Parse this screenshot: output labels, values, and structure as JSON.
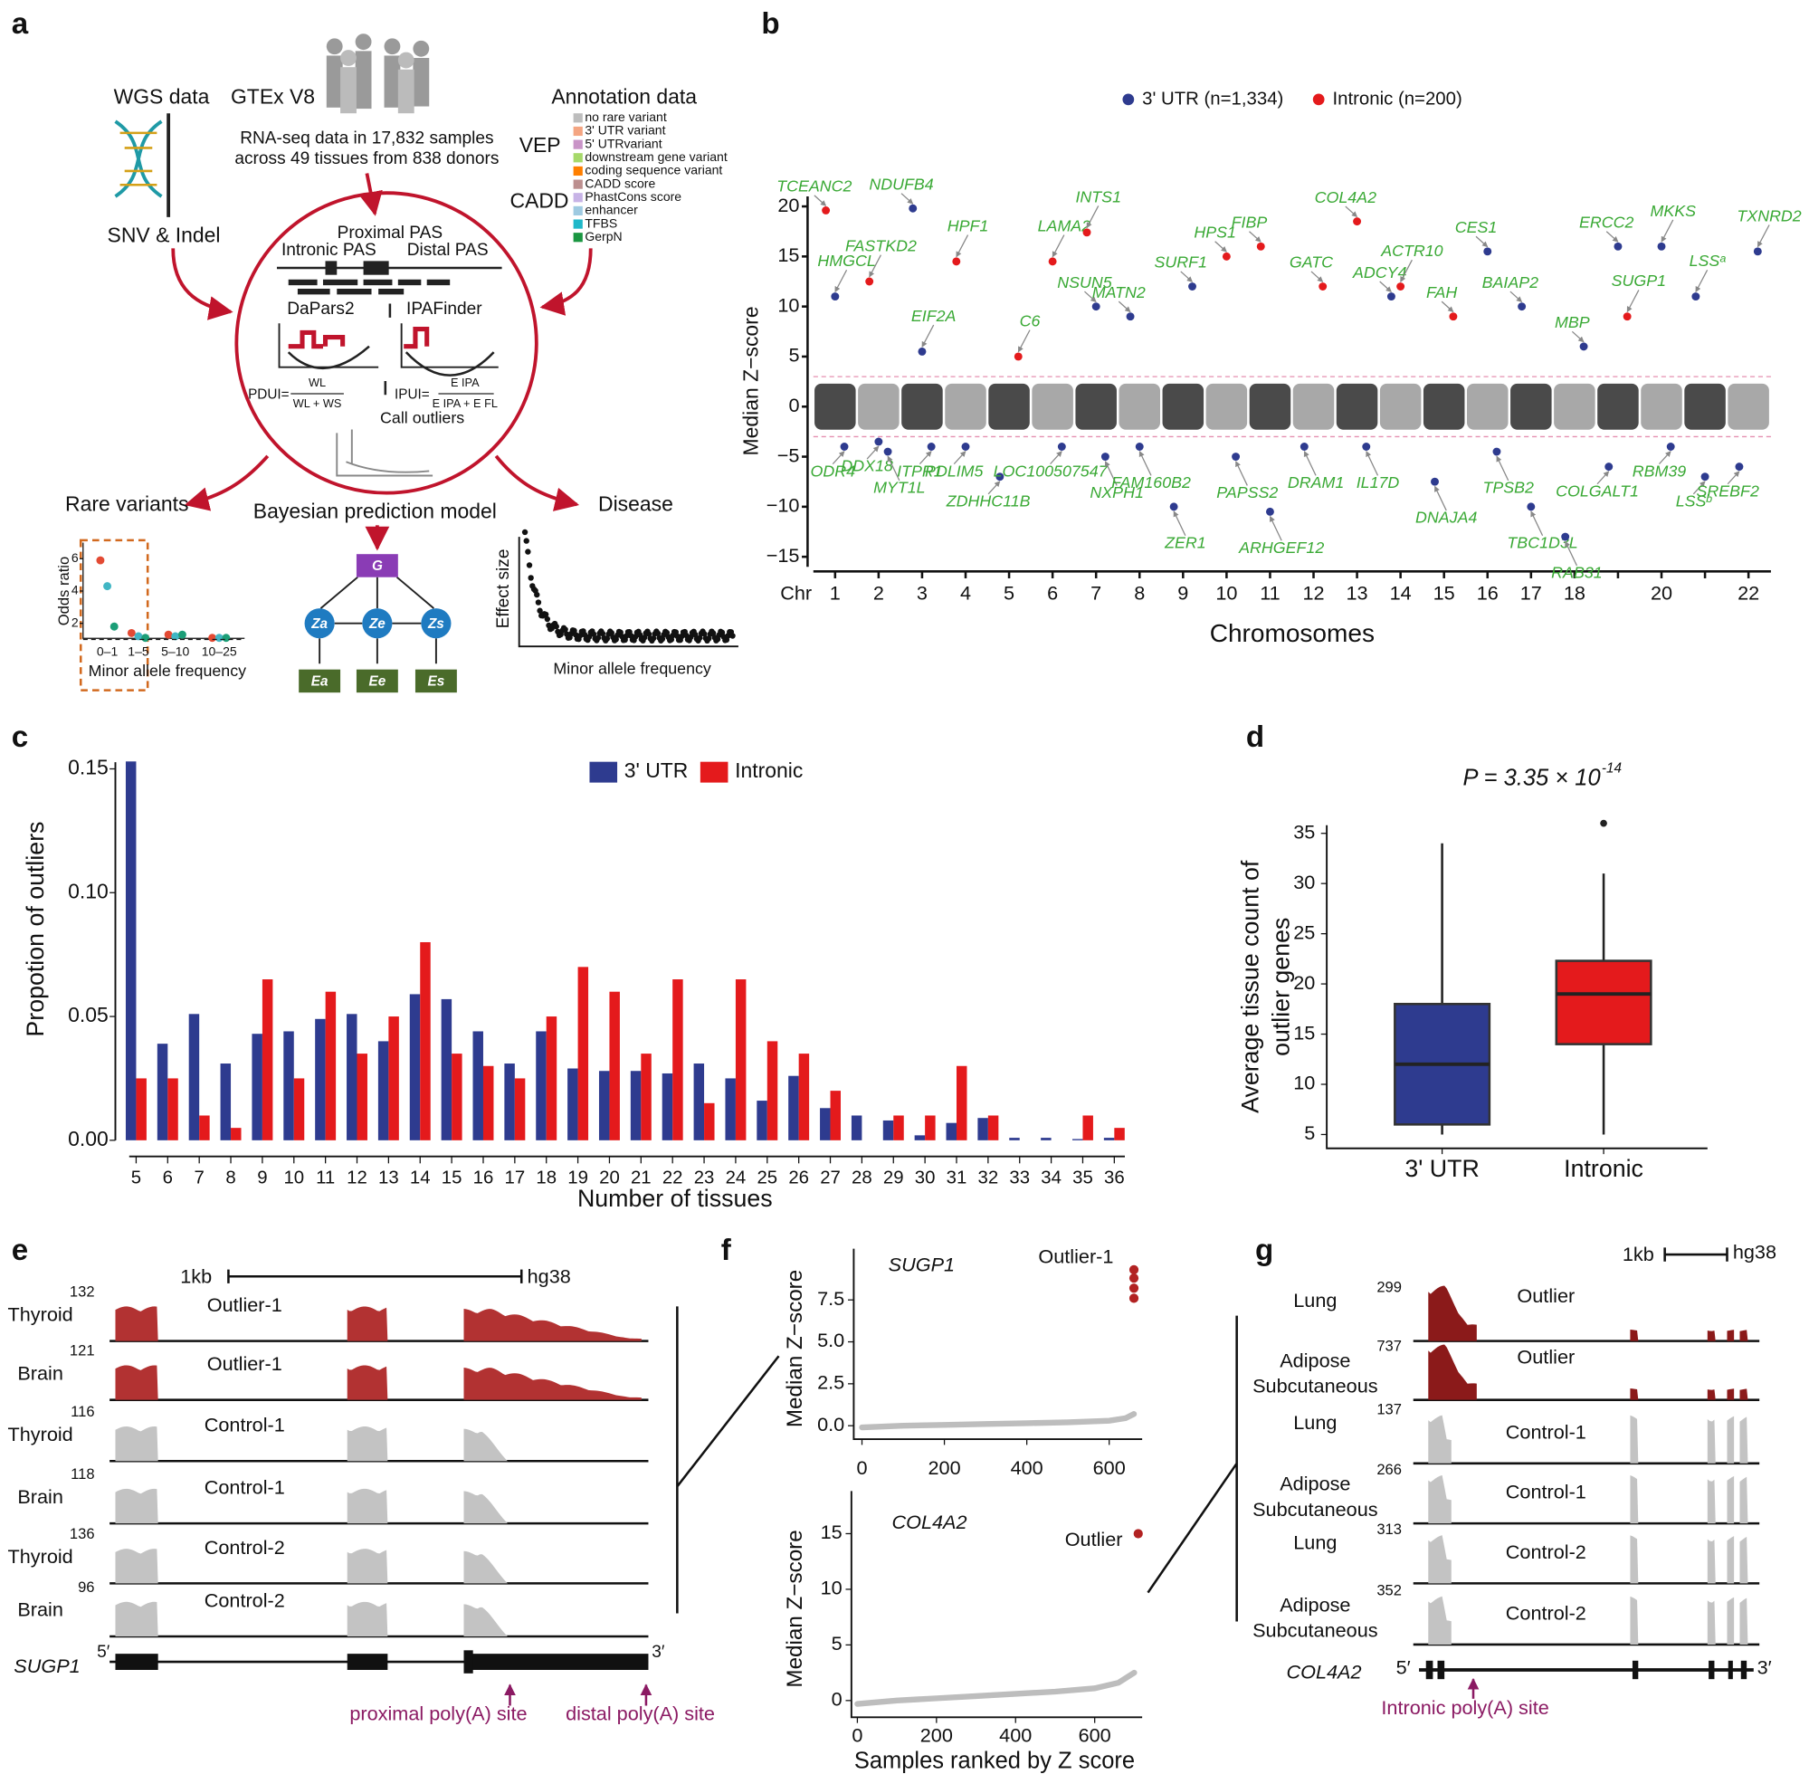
{
  "panel_labels": [
    "a",
    "b",
    "c",
    "d",
    "e",
    "f",
    "g"
  ],
  "overview": {
    "wgs": "WGS data",
    "snv": "SNV & Indel",
    "gtex": "GTEx V8",
    "rnaseq": [
      "RNA-seq data in 17,832 samples",
      "across 49 tissues from 838 donors"
    ],
    "annotation": "Annotation data",
    "vep": "VEP",
    "cadd": "CADD",
    "annotation_items": [
      {
        "label": "no rare variant",
        "color": "#bdbdbd"
      },
      {
        "label": "3' UTR variant",
        "color": "#f4a582"
      },
      {
        "label": "5' UTRvariant",
        "color": "#c994c7"
      },
      {
        "label": "downstream gene variant",
        "color": "#a6d96a"
      },
      {
        "label": "coding sequence variant",
        "color": "#ff7f00"
      },
      {
        "label": "CADD score",
        "color": "#bc8f8f"
      },
      {
        "label": "PhastCons score",
        "color": "#c7b3e6"
      },
      {
        "label": "enhancer",
        "color": "#9ecae1"
      },
      {
        "label": "TFBS",
        "color": "#1fb8c9"
      },
      {
        "label": "GerpN",
        "color": "#1a9641"
      }
    ],
    "pas": [
      "Proximal PAS",
      "Intronic PAS",
      "Distal PAS"
    ],
    "tools": [
      "DaPars2",
      "IPAFinder"
    ],
    "pdui": [
      "PDUI=",
      "WL",
      "WL + WS"
    ],
    "ipui": [
      "IPUI=",
      "E IPA",
      "E IPA + E FL"
    ],
    "call": "Call outliers",
    "rare": "Rare variants",
    "bayes": "Bayesian prediction model",
    "disease": "Disease",
    "odds": {
      "ylabel": "Odds ratio",
      "xlabel": "Minor allele frequency",
      "bins": [
        "0–1",
        "1–5",
        "5–10",
        "10–25"
      ],
      "yticks": [
        2,
        4,
        6
      ],
      "ylim": [
        0,
        7
      ],
      "series": [
        {
          "color": "#e34a33",
          "values": [
            5.9,
            1.4,
            1.3,
            1.1
          ]
        },
        {
          "color": "#41b6c4",
          "values": [
            4.3,
            1.2,
            1.2,
            1.1
          ]
        },
        {
          "color": "#1b9e77",
          "values": [
            1.8,
            1.1,
            1.3,
            1.1
          ]
        }
      ]
    },
    "nodes": [
      "G",
      "Za",
      "Ze",
      "Zs",
      "Ea",
      "Ee",
      "Es"
    ],
    "effect": {
      "ylabel": "Effect size",
      "xlabel": "Minor allele frequency"
    }
  },
  "chart_data": [
    {
      "type": "scatter",
      "ylabel": "Median Z−score",
      "xlabel": "Chromosomes",
      "xaxis_prefix": "Chr",
      "categories": [
        "1",
        "2",
        "3",
        "4",
        "5",
        "6",
        "7",
        "8",
        "9",
        "10",
        "11",
        "12",
        "13",
        "14",
        "15",
        "16",
        "17",
        "18",
        null,
        "20",
        null,
        "22"
      ],
      "ylim": [
        -16,
        21
      ],
      "yticks": [
        {
          "value": -15,
          "label": "−15"
        },
        {
          "value": -10,
          "label": "−10"
        },
        {
          "value": -5,
          "label": "−5"
        },
        0,
        5,
        10,
        15,
        20
      ],
      "thresholds": [
        3,
        -3
      ],
      "series": [
        {
          "name": "3' UTR (n=1,334)",
          "color": "#2e3b8f"
        },
        {
          "name": "Intronic (n=200)",
          "color": "#e41a1c"
        }
      ],
      "annotations": [
        {
          "label": "TCEANC2",
          "chr": 1,
          "z": 19.6,
          "series": 1
        },
        {
          "label": "HMGCL",
          "chr": 1,
          "z": 11,
          "series": 0
        },
        {
          "label": "ODR4",
          "chr": 1,
          "z": -4,
          "series": 0
        },
        {
          "label": "FASTKD2",
          "chr": 2,
          "z": 12.5,
          "series": 1
        },
        {
          "label": "DDX18",
          "chr": 2,
          "z": -3.5,
          "series": 0
        },
        {
          "label": "MYT1L",
          "chr": 2,
          "z": -4.5,
          "series": 0
        },
        {
          "label": "NDUFB4",
          "chr": 3,
          "z": 19.8,
          "series": 0
        },
        {
          "label": "EIF2A",
          "chr": 3,
          "z": 5.5,
          "series": 0
        },
        {
          "label": "ITPR1",
          "chr": 3,
          "z": -4,
          "series": 0
        },
        {
          "label": "HPF1",
          "chr": 4,
          "z": 14.5,
          "series": 1
        },
        {
          "label": "PDLIM5",
          "chr": 4,
          "z": -4,
          "series": 0
        },
        {
          "label": "C6",
          "chr": 5,
          "z": 5,
          "series": 1
        },
        {
          "label": "ZDHHC11B",
          "chr": 5,
          "z": -7,
          "series": 0
        },
        {
          "label": "LAMA2",
          "chr": 6,
          "z": 14.5,
          "series": 1
        },
        {
          "label": "LOC100507547",
          "chr": 6,
          "z": -4,
          "series": 0
        },
        {
          "label": "INTS1",
          "chr": 7,
          "z": 17.4,
          "series": 1
        },
        {
          "label": "NSUN5",
          "chr": 7,
          "z": 10,
          "series": 0
        },
        {
          "label": "NXPH1",
          "chr": 7,
          "z": -5,
          "series": 0
        },
        {
          "label": "MATN2",
          "chr": 8,
          "z": 9,
          "series": 0
        },
        {
          "label": "FAM160B2",
          "chr": 8,
          "z": -4,
          "series": 0
        },
        {
          "label": "SURF1",
          "chr": 9,
          "z": 12,
          "series": 0
        },
        {
          "label": "ZER1",
          "chr": 9,
          "z": -10,
          "series": 0
        },
        {
          "label": "HPS1",
          "chr": 10,
          "z": 15,
          "series": 1
        },
        {
          "label": "PAPSS2",
          "chr": 10,
          "z": -5,
          "series": 0
        },
        {
          "label": "FIBP",
          "chr": 11,
          "z": 16,
          "series": 1
        },
        {
          "label": "ARHGEF12",
          "chr": 11,
          "z": -10.5,
          "series": 0
        },
        {
          "label": "GATC",
          "chr": 12,
          "z": 12,
          "series": 1
        },
        {
          "label": "DRAM1",
          "chr": 12,
          "z": -4,
          "series": 0
        },
        {
          "label": "COL4A2",
          "chr": 13,
          "z": 18.5,
          "series": 1
        },
        {
          "label": "IL17D",
          "chr": 13,
          "z": -4,
          "series": 0
        },
        {
          "label": "ADCY4",
          "chr": 14,
          "z": 11,
          "series": 0
        },
        {
          "label": "ACTR10",
          "chr": 14,
          "z": 12,
          "series": 1
        },
        {
          "label": "FAH",
          "chr": 15,
          "z": 9,
          "series": 1
        },
        {
          "label": "DNAJA4",
          "chr": 15,
          "z": -7.5,
          "series": 0
        },
        {
          "label": "CES1",
          "chr": 16,
          "z": 15.5,
          "series": 0
        },
        {
          "label": "TPSB2",
          "chr": 16,
          "z": -4.5,
          "series": 0
        },
        {
          "label": "BAIAP2",
          "chr": 17,
          "z": 10,
          "series": 0
        },
        {
          "label": "TBC1D3L",
          "chr": 17,
          "z": -10,
          "series": 0
        },
        {
          "label": "MBP",
          "chr": 18,
          "z": 6,
          "series": 0
        },
        {
          "label": "RAB31",
          "chr": 18,
          "z": -13,
          "series": 0
        },
        {
          "label": "ERCC2",
          "chr": 19,
          "z": 16,
          "series": 0
        },
        {
          "label": "SUGP1",
          "chr": 19,
          "z": 9,
          "series": 1
        },
        {
          "label": "COLGALT1",
          "chr": 19,
          "z": -6,
          "series": 0
        },
        {
          "label": "MKKS",
          "chr": 20,
          "z": 16,
          "series": 0
        },
        {
          "label": "RBM39",
          "chr": 20,
          "z": -4,
          "series": 0
        },
        {
          "label": "LSSᵃ",
          "chr": 21,
          "z": 11,
          "series": 0
        },
        {
          "label": "LSSᵇ",
          "chr": 21,
          "z": -7,
          "series": 0
        },
        {
          "label": "TXNRD2",
          "chr": 22,
          "z": 15.5,
          "series": 0
        },
        {
          "label": "SREBF2",
          "chr": 22,
          "z": -6,
          "series": 0
        }
      ]
    },
    {
      "type": "bar",
      "ylabel": "Propotion of outliers",
      "xlabel": "Number of tissues",
      "categories": [
        "5",
        "6",
        "7",
        "8",
        "9",
        "10",
        "11",
        "12",
        "13",
        "14",
        "15",
        "16",
        "17",
        "18",
        "19",
        "20",
        "21",
        "22",
        "23",
        "24",
        "25",
        "26",
        "27",
        "28",
        "29",
        "30",
        "31",
        "32",
        "33",
        "34",
        "35",
        "36"
      ],
      "series": [
        {
          "name": "3' UTR",
          "color": "#2e3b8f",
          "values": [
            0.153,
            0.039,
            0.051,
            0.031,
            0.043,
            0.044,
            0.049,
            0.051,
            0.04,
            0.059,
            0.057,
            0.044,
            0.031,
            0.044,
            0.029,
            0.028,
            0.028,
            0.027,
            0.031,
            0.025,
            0.016,
            0.026,
            0.013,
            0.01,
            0.008,
            0.002,
            0.007,
            0.009,
            0.001,
            0.001,
            0.0005,
            0.001
          ]
        },
        {
          "name": "Intronic",
          "color": "#e41a1c",
          "values": [
            0.025,
            0.025,
            0.01,
            0.005,
            0.065,
            0.025,
            0.06,
            0.035,
            0.05,
            0.08,
            0.035,
            0.03,
            0.025,
            0.05,
            0.07,
            0.06,
            0.035,
            0.065,
            0.015,
            0.065,
            0.04,
            0.035,
            0.02,
            0,
            0.01,
            0.01,
            0.03,
            0.01,
            0,
            0,
            0.01,
            0.005
          ]
        }
      ],
      "ylim": [
        0,
        0.155
      ],
      "yticks": [
        {
          "value": 0,
          "label": "0.00"
        },
        {
          "value": 0.05,
          "label": "0.05"
        },
        {
          "value": 0.1,
          "label": "0.10"
        },
        {
          "value": 0.15,
          "label": "0.15"
        }
      ]
    },
    {
      "type": "box",
      "title": "P = 3.35 × 10",
      "title_exponent": "-14",
      "ylabel": [
        "Average tissue count of",
        "outlier genes"
      ],
      "boxes": [
        {
          "name": "3' UTR",
          "color": "#2e3b8f",
          "low": 5,
          "q1": 6,
          "median": 12,
          "q3": 18,
          "high": 34
        },
        {
          "name": "Intronic",
          "color": "#e41a1c",
          "low": 5,
          "q1": 14,
          "median": 19,
          "q3": 22.3,
          "high": 31,
          "outliers": [
            36
          ]
        }
      ],
      "ylim": [
        3,
        37
      ],
      "yticks": [
        5,
        10,
        15,
        20,
        25,
        30,
        35
      ]
    },
    {
      "type": "line",
      "title": "SUGP1",
      "annotation": "Outlier-1",
      "ylabel": "Median Z−score",
      "color": "#bdbdbd",
      "outlier_color": "#b22222",
      "x": [
        0,
        100,
        200,
        300,
        400,
        500,
        600,
        640,
        660
      ],
      "values": [
        -0.1,
        0.0,
        0.05,
        0.1,
        0.15,
        0.2,
        0.3,
        0.45,
        0.7
      ],
      "outliers": {
        "x": [
          660,
          660,
          660,
          660
        ],
        "values": [
          9.3,
          8.8,
          8.2,
          7.6
        ]
      },
      "xlim": [
        -20,
        680
      ],
      "ylim": [
        -0.8,
        10
      ],
      "xticks": [
        0,
        200,
        400,
        600
      ],
      "yticks": [
        {
          "value": 0,
          "label": "0.0"
        },
        {
          "value": 2.5,
          "label": "2.5"
        },
        {
          "value": 5,
          "label": "5.0"
        },
        {
          "value": 7.5,
          "label": "7.5"
        }
      ]
    },
    {
      "type": "line",
      "title": "COL4A2",
      "annotation": "Outlier",
      "ylabel": "Median Z−score",
      "xlabel": "Samples ranked by Z score",
      "color": "#bdbdbd",
      "outlier_color": "#b22222",
      "x": [
        0,
        100,
        200,
        300,
        400,
        500,
        600,
        660,
        700
      ],
      "values": [
        -0.3,
        0.0,
        0.2,
        0.4,
        0.6,
        0.8,
        1.1,
        1.6,
        2.5
      ],
      "outliers": {
        "x": [
          710
        ],
        "values": [
          15
        ]
      },
      "xlim": [
        -15,
        720
      ],
      "ylim": [
        -1.5,
        18
      ],
      "xticks": [
        0,
        200,
        400,
        600
      ],
      "yticks": [
        0,
        5,
        10,
        15
      ]
    }
  ],
  "tracks_e": {
    "scale": "1kb",
    "build": "hg38",
    "gene": "SUGP1",
    "five": "5′",
    "three": "3′",
    "sites": [
      "proximal poly(A) site",
      "distal poly(A) site"
    ],
    "tracks": [
      {
        "tissue": "Thyroid",
        "max": 132,
        "label": "Outlier-1",
        "color": "#b23232"
      },
      {
        "tissue": "Brain",
        "max": 121,
        "label": "Outlier-1",
        "color": "#b23232"
      },
      {
        "tissue": "Thyroid",
        "max": 116,
        "label": "Control-1",
        "color": "#c3c3c3"
      },
      {
        "tissue": "Brain",
        "max": 118,
        "label": "Control-1",
        "color": "#c3c3c3"
      },
      {
        "tissue": "Thyroid",
        "max": 136,
        "label": "Control-2",
        "color": "#c3c3c3"
      },
      {
        "tissue": "Brain",
        "max": 96,
        "label": "Control-2",
        "color": "#c3c3c3"
      }
    ]
  },
  "tracks_g": {
    "scale": "1kb",
    "build": "hg38",
    "gene": "COL4A2",
    "five": "5′",
    "three": "3′",
    "site": "Intronic poly(A) site",
    "tracks": [
      {
        "tissue": [
          "Lung"
        ],
        "max": 299,
        "label": "Outlier",
        "color": "#8b1a1a"
      },
      {
        "tissue": [
          "Adipose",
          "Subcutaneous"
        ],
        "max": 737,
        "label": "Outlier",
        "color": "#8b1a1a"
      },
      {
        "tissue": [
          "Lung"
        ],
        "max": 137,
        "label": "Control-1",
        "color": "#c3c3c3"
      },
      {
        "tissue": [
          "Adipose",
          "Subcutaneous"
        ],
        "max": 266,
        "label": "Control-1",
        "color": "#c3c3c3"
      },
      {
        "tissue": [
          "Lung"
        ],
        "max": 313,
        "label": "Control-2",
        "color": "#c3c3c3"
      },
      {
        "tissue": [
          "Adipose",
          "Subcutaneous"
        ],
        "max": 352,
        "label": "Control-2",
        "color": "#c3c3c3"
      }
    ]
  }
}
